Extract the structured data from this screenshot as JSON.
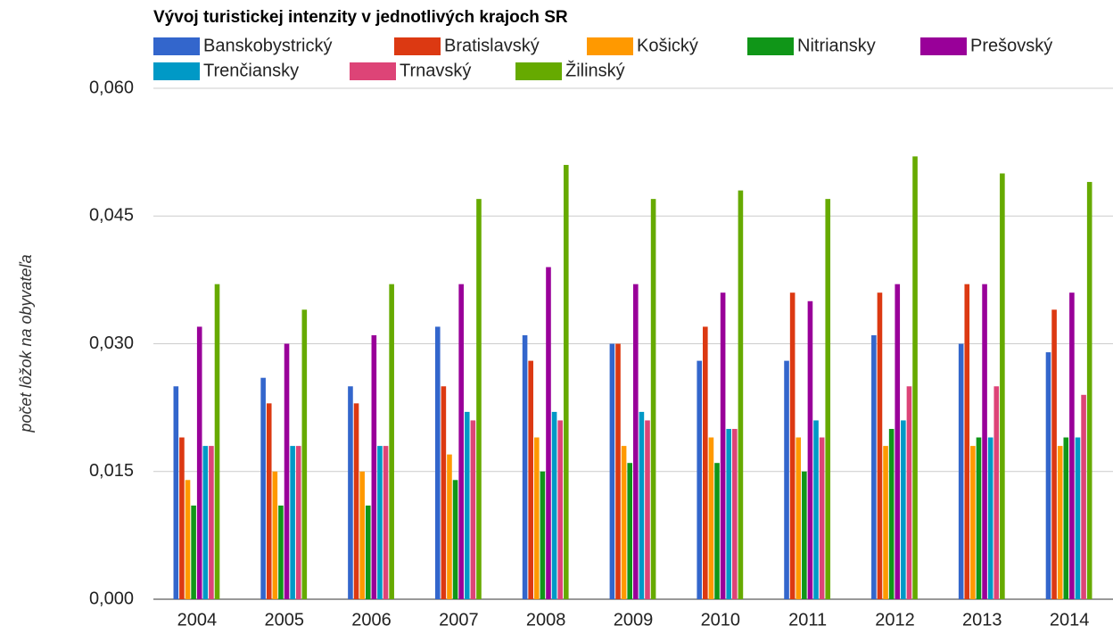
{
  "chart_data": {
    "type": "bar",
    "title": "Vývoj turistickej intenzity v jednotlivých krajoch SR",
    "y_label": "počet lôžok na obyvateľa",
    "categories": [
      "2004",
      "2005",
      "2006",
      "2007",
      "2008",
      "2009",
      "2010",
      "2011",
      "2012",
      "2013",
      "2014"
    ],
    "series": [
      {
        "name": "Banskobystrický",
        "color": "#3366cc",
        "values": [
          0.025,
          0.026,
          0.025,
          0.032,
          0.031,
          0.03,
          0.028,
          0.028,
          0.031,
          0.03,
          0.029
        ]
      },
      {
        "name": "Bratislavský",
        "color": "#dc3912",
        "values": [
          0.019,
          0.023,
          0.023,
          0.025,
          0.028,
          0.03,
          0.032,
          0.036,
          0.036,
          0.037,
          0.034
        ]
      },
      {
        "name": "Košický",
        "color": "#ff9900",
        "values": [
          0.014,
          0.015,
          0.015,
          0.017,
          0.019,
          0.018,
          0.019,
          0.019,
          0.018,
          0.018,
          0.018
        ]
      },
      {
        "name": "Nitriansky",
        "color": "#109618",
        "values": [
          0.011,
          0.011,
          0.011,
          0.014,
          0.015,
          0.016,
          0.016,
          0.015,
          0.02,
          0.019,
          0.019
        ]
      },
      {
        "name": "Prešovský",
        "color": "#990099",
        "values": [
          0.032,
          0.03,
          0.031,
          0.037,
          0.039,
          0.037,
          0.036,
          0.035,
          0.037,
          0.037,
          0.036
        ]
      },
      {
        "name": "Trenčiansky",
        "color": "#0099c6",
        "values": [
          0.018,
          0.018,
          0.018,
          0.022,
          0.022,
          0.022,
          0.02,
          0.021,
          0.021,
          0.019,
          0.019
        ]
      },
      {
        "name": "Trnavský",
        "color": "#dd4477",
        "values": [
          0.018,
          0.018,
          0.018,
          0.021,
          0.021,
          0.021,
          0.02,
          0.019,
          0.025,
          0.025,
          0.024
        ]
      },
      {
        "name": "Žilinský",
        "color": "#66aa00",
        "values": [
          0.037,
          0.034,
          0.037,
          0.047,
          0.051,
          0.047,
          0.048,
          0.047,
          0.052,
          0.05,
          0.049
        ]
      }
    ],
    "ylim": [
      0,
      0.06
    ],
    "yticks": [
      {
        "value": 0,
        "label": "0,000"
      },
      {
        "value": 0.015,
        "label": "0,015"
      },
      {
        "value": 0.03,
        "label": "0,030"
      },
      {
        "value": 0.045,
        "label": "0,045"
      },
      {
        "value": 0.06,
        "label": "0,060"
      }
    ],
    "grid": true
  }
}
